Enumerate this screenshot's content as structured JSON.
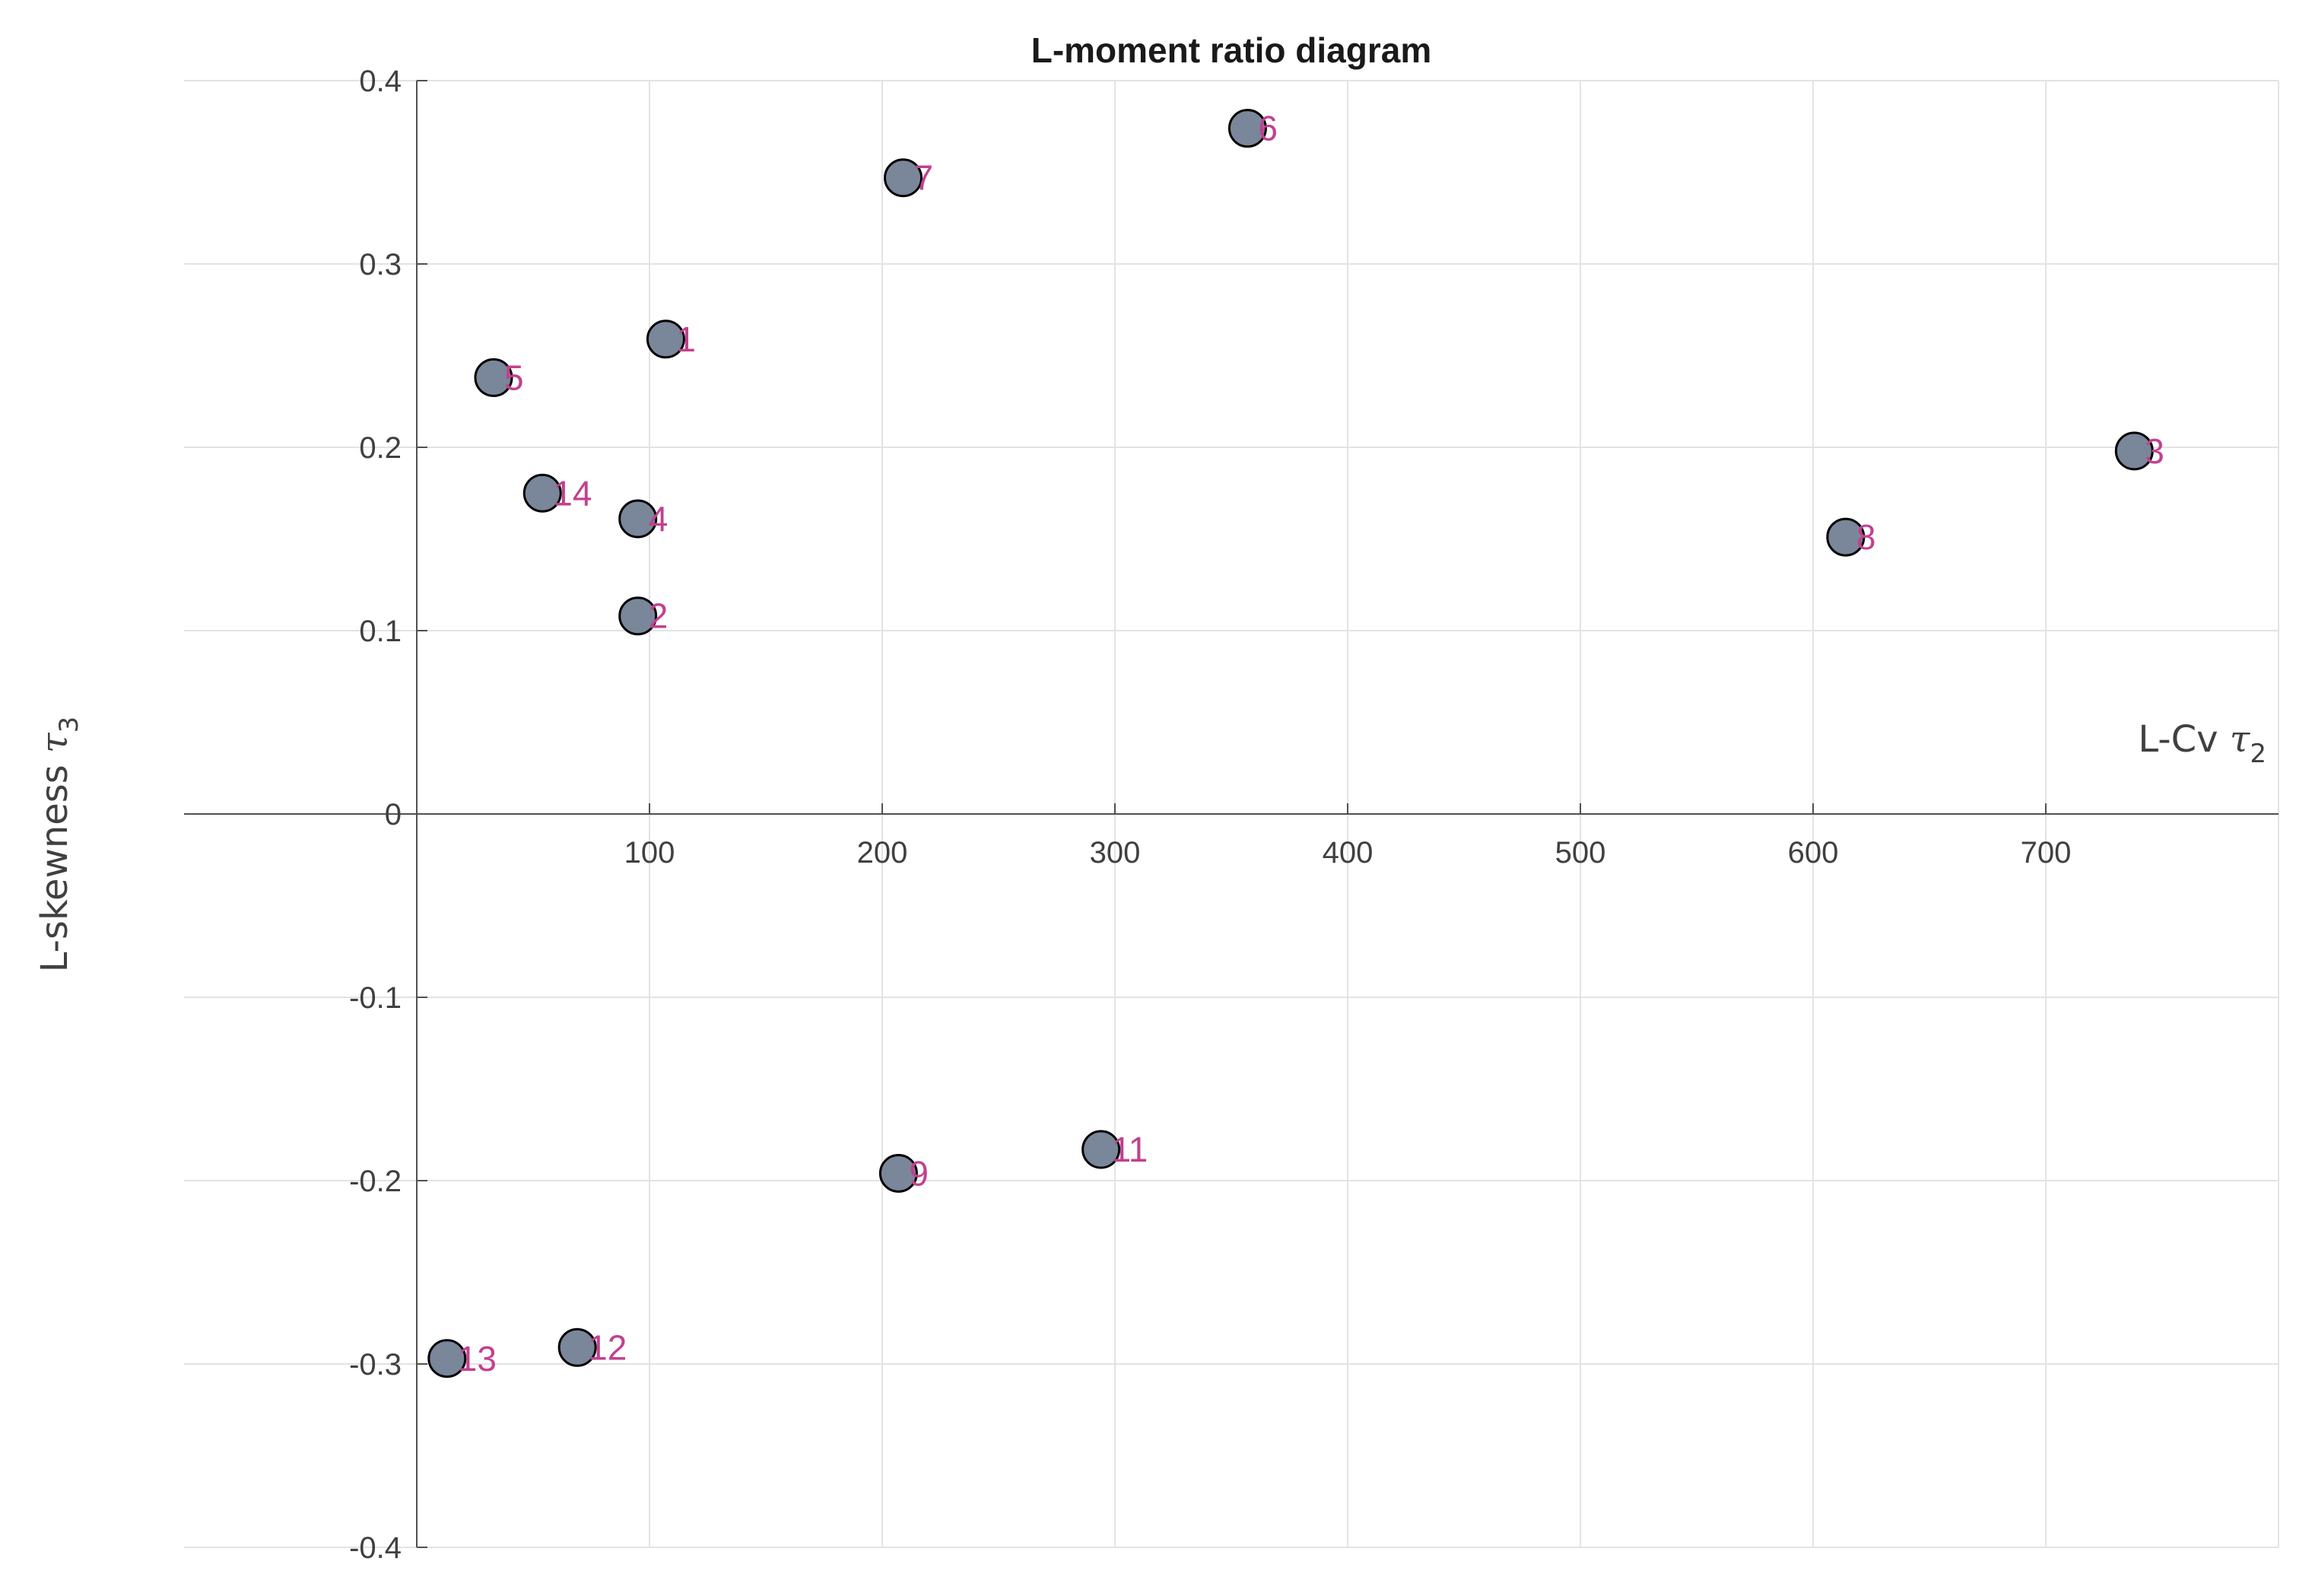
{
  "chart_data": {
    "type": "scatter",
    "title": "L-moment ratio diagram",
    "xlabel": {
      "text": "L-Cv ",
      "symbol": "τ",
      "subscript": "2"
    },
    "ylabel": {
      "text": "L-skewness ",
      "symbol": "τ",
      "subscript": "3"
    },
    "xlim": [
      -100,
      800
    ],
    "ylim": [
      -0.4,
      0.4
    ],
    "xticks": [
      100,
      200,
      300,
      400,
      500,
      600,
      700
    ],
    "xtick_labels": [
      "100",
      "200",
      "300",
      "400",
      "500",
      "600",
      "700"
    ],
    "yticks": [
      -0.4,
      -0.3,
      -0.2,
      -0.1,
      0,
      0.1,
      0.2,
      0.3,
      0.4
    ],
    "ytick_labels": [
      "-0.4",
      "-0.3",
      "-0.2",
      "-0.1",
      "0",
      "0.1",
      "0.2",
      "0.3",
      "0.4"
    ],
    "grid": true,
    "marker_color": "#7a8699",
    "marker_edge_color": "#000000",
    "label_color": "#c2408f",
    "points": [
      {
        "label": "1",
        "x": 107,
        "y": 0.259
      },
      {
        "label": "2",
        "x": 95,
        "y": 0.108
      },
      {
        "label": "3",
        "x": 738,
        "y": 0.198
      },
      {
        "label": "4",
        "x": 95,
        "y": 0.161
      },
      {
        "label": "5",
        "x": 33,
        "y": 0.238
      },
      {
        "label": "6",
        "x": 357,
        "y": 0.374
      },
      {
        "label": "7",
        "x": 209,
        "y": 0.347
      },
      {
        "label": "8",
        "x": 614,
        "y": 0.151
      },
      {
        "label": "9",
        "x": 207,
        "y": -0.196
      },
      {
        "label": "11",
        "x": 294,
        "y": -0.183
      },
      {
        "label": "12",
        "x": 69,
        "y": -0.291
      },
      {
        "label": "13",
        "x": 13,
        "y": -0.297
      },
      {
        "label": "14",
        "x": 54,
        "y": 0.175
      }
    ]
  }
}
